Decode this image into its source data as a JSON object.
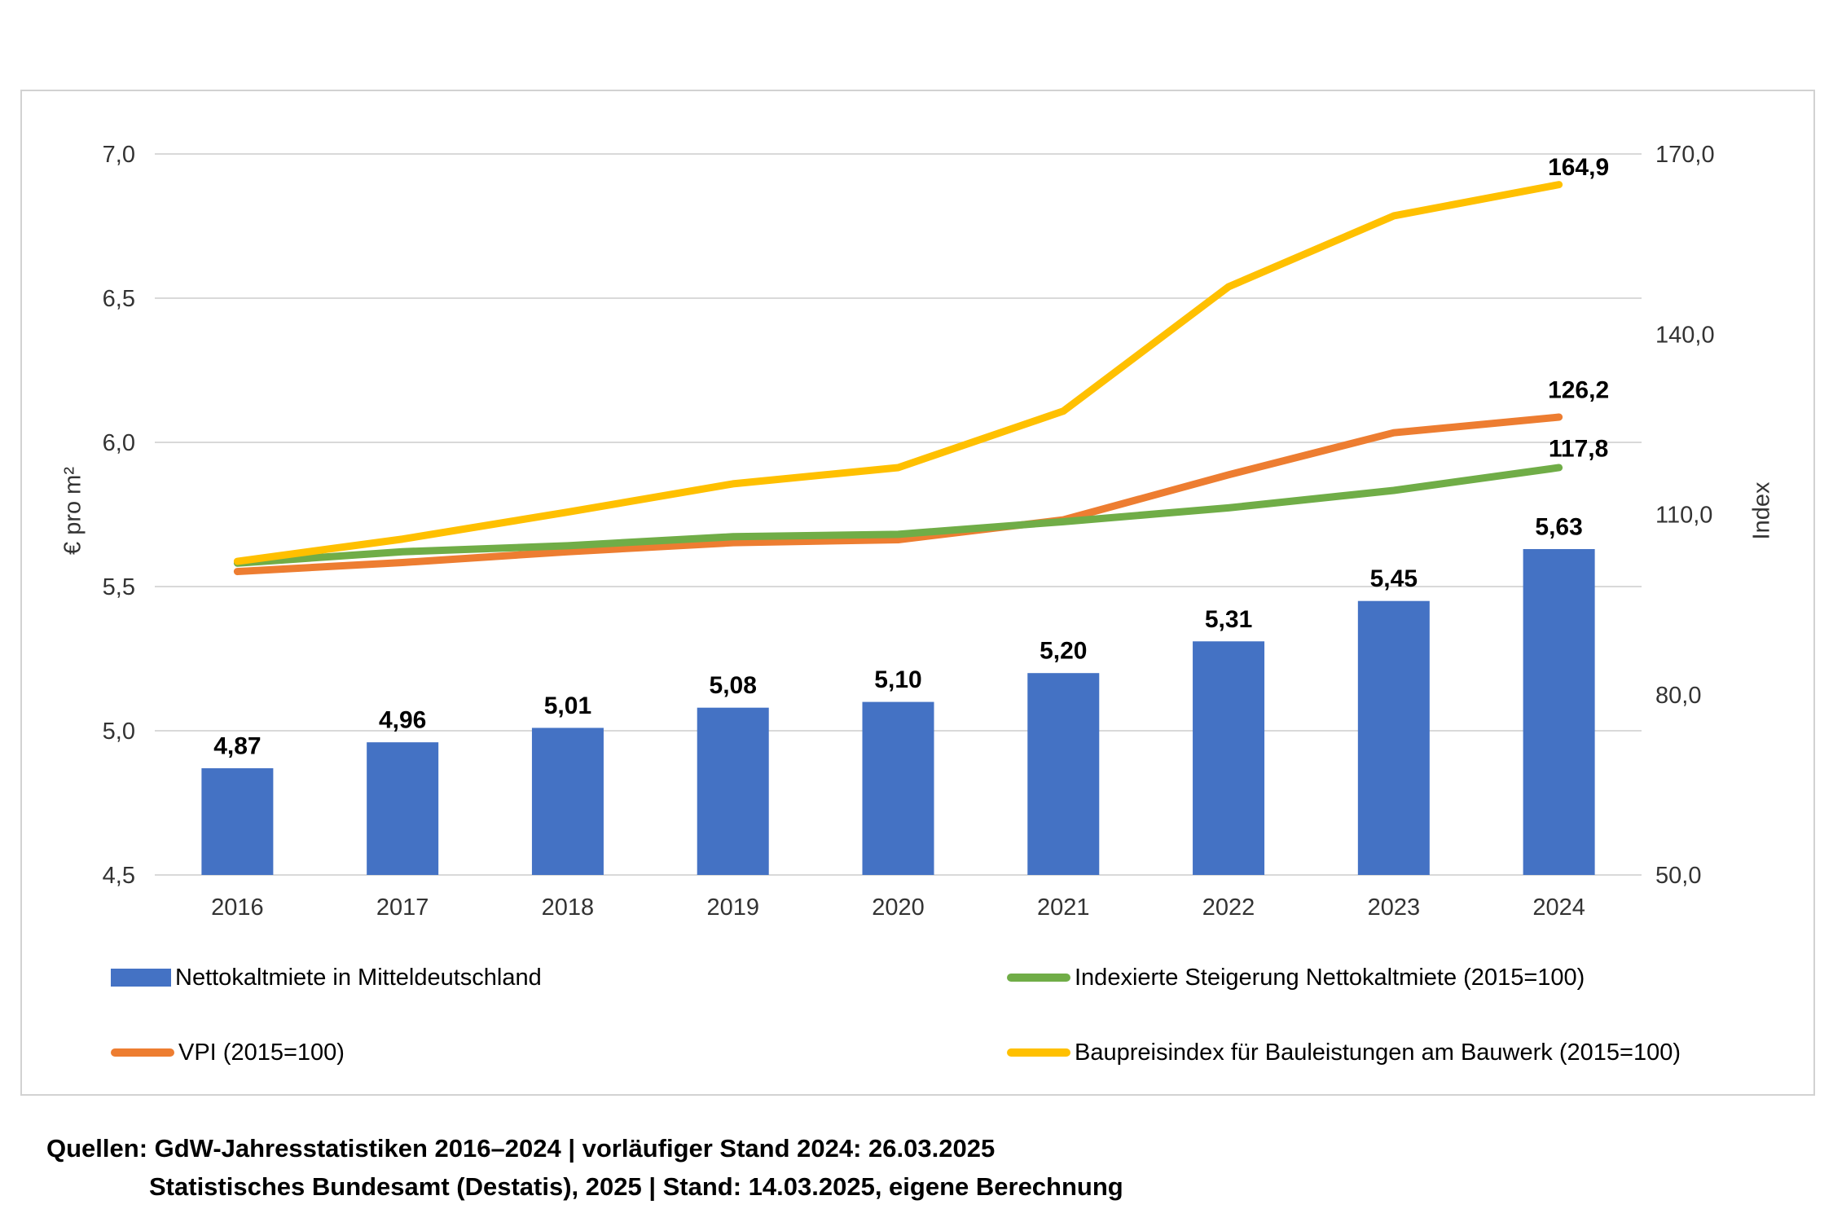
{
  "figure": {
    "left_axis_title": "€ pro m²",
    "right_axis_title": "Index"
  },
  "chart_data": {
    "type": "combo-bar-line",
    "categories": [
      "2016",
      "2017",
      "2018",
      "2019",
      "2020",
      "2021",
      "2022",
      "2023",
      "2024"
    ],
    "grid": "horizontal-on",
    "legend_position": "bottom-two-columns",
    "left_axis": {
      "label": "€ pro m²",
      "min": 4.5,
      "max": 7.0,
      "ticks": [
        {
          "v": 7.0,
          "label": "7,0"
        },
        {
          "v": 6.5,
          "label": "6,5"
        },
        {
          "v": 6.0,
          "label": "6,0"
        },
        {
          "v": 5.5,
          "label": "5,5"
        },
        {
          "v": 5.0,
          "label": "5,0"
        },
        {
          "v": 4.5,
          "label": "4,5"
        }
      ]
    },
    "right_axis": {
      "label": "Index",
      "min": 50,
      "max": 170,
      "ticks": [
        {
          "v": 170,
          "label": "170,0"
        },
        {
          "v": 140,
          "label": "140,0"
        },
        {
          "v": 110,
          "label": "110,0"
        },
        {
          "v": 80,
          "label": "80,0"
        },
        {
          "v": 50,
          "label": "50,0"
        }
      ]
    },
    "series": [
      {
        "name": "Nettokaltmiete in Mitteldeutschland",
        "type": "bar",
        "axis": "left",
        "color": "#4472C4",
        "values": [
          4.87,
          4.96,
          5.01,
          5.08,
          5.1,
          5.2,
          5.31,
          5.45,
          5.63
        ],
        "labels": [
          "4,87",
          "4,96",
          "5,01",
          "5,08",
          "5,10",
          "5,20",
          "5,31",
          "5,45",
          "5,63"
        ]
      },
      {
        "name": "VPI (2015=100)",
        "type": "line",
        "axis": "right",
        "color": "#ED7D31",
        "values": [
          100.5,
          102.0,
          103.8,
          105.3,
          105.8,
          109.1,
          116.6,
          123.6,
          126.2
        ],
        "end_label": "126,2"
      },
      {
        "name": "Indexierte Steigerung Nettokaltmiete (2015=100)",
        "type": "line",
        "axis": "right",
        "color": "#70AD47",
        "values": [
          101.9,
          103.8,
          104.8,
          106.3,
          106.7,
          108.8,
          111.1,
          114.0,
          117.8
        ],
        "end_label": "117,8"
      },
      {
        "name": "Baupreisindex für Bauleistungen am Bauwerk (2015=100)",
        "type": "line",
        "axis": "right",
        "color": "#FFC000",
        "values": [
          102.2,
          105.9,
          110.4,
          115.1,
          117.8,
          127.2,
          147.9,
          159.7,
          164.9
        ],
        "end_label": "164,9"
      }
    ]
  },
  "legend": {
    "items": [
      {
        "label": "Nettokaltmiete in Mitteldeutschland",
        "marker": "bar",
        "color": "#4472C4",
        "col": 0,
        "row": 0,
        "name": "nettokaltmiete"
      },
      {
        "label": "Indexierte Steigerung Nettokaltmiete (2015=100)",
        "marker": "line",
        "color": "#70AD47",
        "col": 1,
        "row": 0,
        "name": "indexierte-steigerung-nettokaltmiete"
      },
      {
        "label": "VPI (2015=100)",
        "marker": "line",
        "color": "#ED7D31",
        "col": 0,
        "row": 1,
        "name": "vpi"
      },
      {
        "label": "Baupreisindex für Bauleistungen am Bauwerk (2015=100)",
        "marker": "line",
        "color": "#FFC000",
        "col": 1,
        "row": 1,
        "name": "baupreisindex"
      }
    ]
  },
  "footer": {
    "line1": "Quellen: GdW-Jahresstatistiken 2016–2024 | vorläufiger Stand 2024: 26.03.2025",
    "line2": "Statistisches Bundesamt (Destatis), 2025 | Stand: 14.03.2025, eigene Berechnung"
  },
  "colors": {
    "bar_blue": "#4472C4",
    "line_orange": "#ED7D31",
    "line_green": "#70AD47",
    "line_yellow": "#FFC000",
    "gridline": "#D9D9D9",
    "frame_border": "#D2D2D2"
  }
}
